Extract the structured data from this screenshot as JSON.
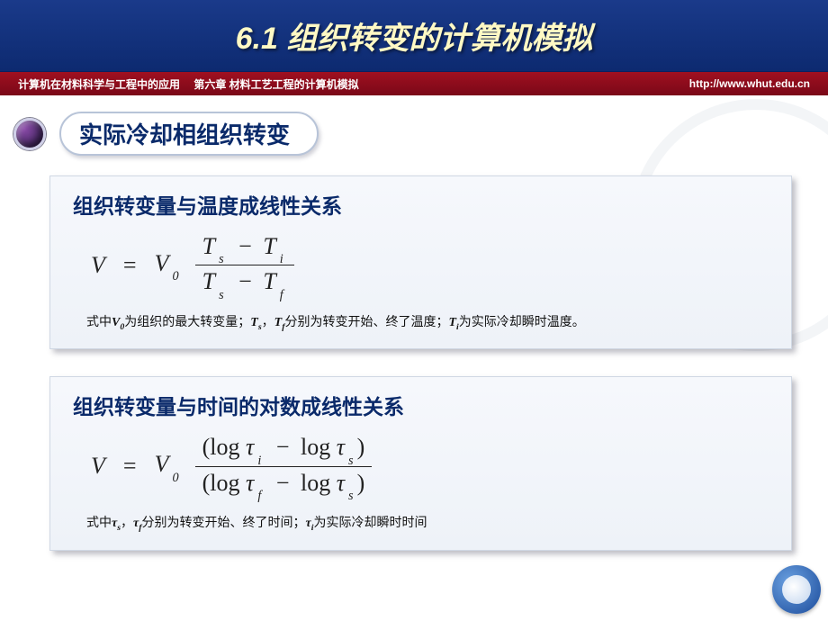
{
  "header": {
    "title": "6.1 组织转变的计算机模拟",
    "bg_gradient": [
      "#1a3a8a",
      "#0d2a70"
    ],
    "title_color": "#fff9c4",
    "title_fontsize": 34
  },
  "subheader": {
    "left": "计算机在材料科学与工程中的应用　 第六章 材料工艺工程的计算机模拟",
    "right": "http://www.whut.edu.cn",
    "bg_gradient": [
      "#a01020",
      "#7a0818"
    ],
    "text_color": "#ffffff",
    "fontsize": 12
  },
  "section_heading": {
    "text": "实际冷却相组织转变",
    "color": "#0a2a6a",
    "fontsize": 26,
    "bullet_gradient": [
      "#8a4aa8",
      "#2a1a48"
    ]
  },
  "card1": {
    "title": "组织转变量与温度成线性关系",
    "title_color": "#0a2a6a",
    "title_fontsize": 23,
    "equation": {
      "lhs": "V",
      "coef": "V",
      "coef_sub": "0",
      "num_a": "T",
      "num_a_sub": "s",
      "num_b": "T",
      "num_b_sub": "i",
      "den_a": "T",
      "den_a_sub": "s",
      "den_b": "T",
      "den_b_sub": "f"
    },
    "note_parts": {
      "p1": "式中",
      "v0": "V",
      "v0_sub": "0",
      "p2": "为组织的最大转变量；",
      "ts": "T",
      "ts_sub": "s",
      "comma": "，",
      "tf": "T",
      "tf_sub": "f",
      "p3": "分别为转变开始、终了温度；",
      "ti": "T",
      "ti_sub": "i",
      "p4": "为实际冷却瞬时温度。"
    },
    "bg_gradient": [
      "#f6f8fc",
      "#eef2f8"
    ],
    "shadow_color": "rgba(70,70,90,0.35)"
  },
  "card2": {
    "title": "组织转变量与时间的对数成线性关系",
    "title_color": "#0a2a6a",
    "title_fontsize": 23,
    "equation": {
      "lhs": "V",
      "coef": "V",
      "coef_sub": "0",
      "log": "log",
      "tau": "τ",
      "num_a_sub": "i",
      "num_b_sub": "s",
      "den_a_sub": "f",
      "den_b_sub": "s"
    },
    "note_parts": {
      "p1": "式中",
      "ts": "τ",
      "ts_sub": "s",
      "comma": "，",
      "tf": "τ",
      "tf_sub": "f",
      "p2": "分别为转变开始、终了时间；",
      "ti": "τ",
      "ti_sub": "i",
      "p3": "为实际冷却瞬时时间"
    }
  },
  "logo": {
    "gradient": [
      "#6aa0e0",
      "#1a4a9a"
    ]
  }
}
